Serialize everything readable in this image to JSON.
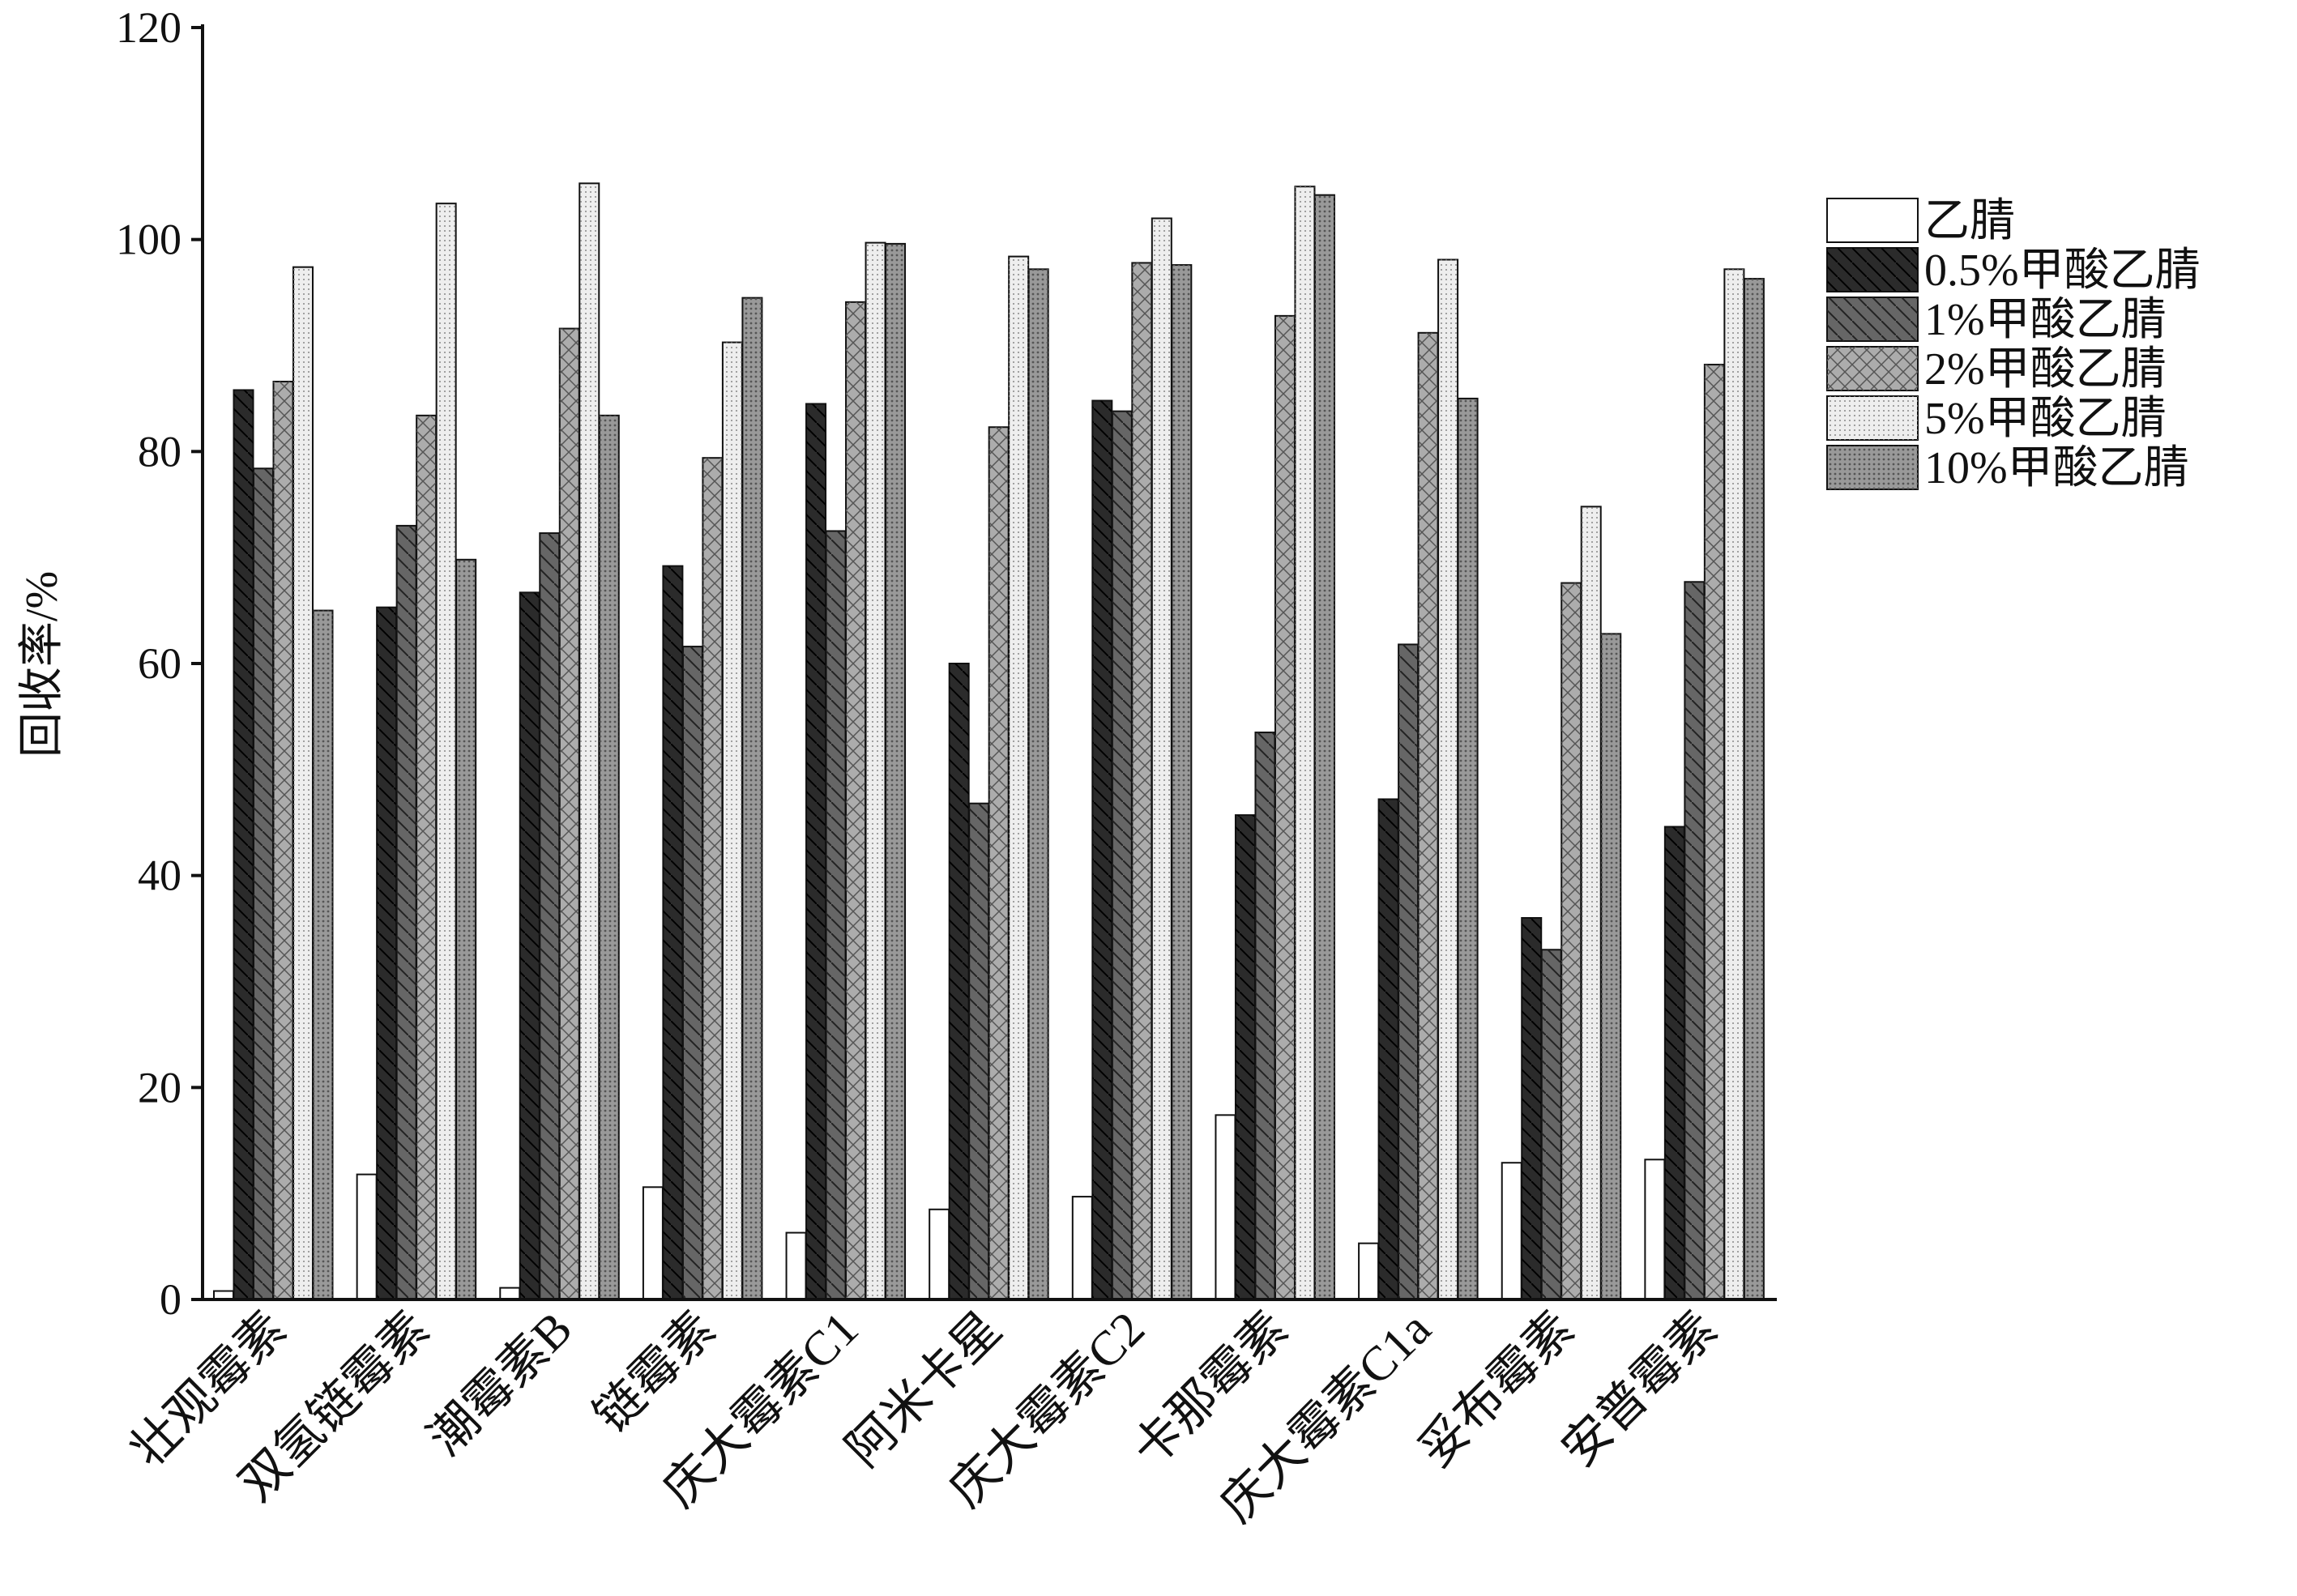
{
  "chart_data": {
    "type": "bar",
    "y_label": "回收率/%",
    "categories": [
      "壮观霉素",
      "双氢链霉素",
      "潮霉素B",
      "链霉素",
      "庆大霉素C1",
      "阿米卡星",
      "庆大霉素C2",
      "卡那霉素",
      "庆大霉素C1a",
      "妥布霉素",
      "安普霉素"
    ],
    "series": [
      {
        "name": "乙腈",
        "color": "#ffffff",
        "values": [
          0.8,
          11.8,
          1.1,
          10.6,
          6.3,
          8.5,
          9.7,
          17.4,
          5.3,
          12.9,
          13.2
        ]
      },
      {
        "name": "0.5%甲酸乙腈",
        "color": "#2b2b2b",
        "values": [
          85.8,
          65.3,
          66.7,
          69.2,
          84.5,
          60.0,
          84.8,
          45.7,
          47.2,
          36.0,
          44.6
        ]
      },
      {
        "name": "1%甲酸乙腈",
        "color": "#666666",
        "values": [
          78.4,
          73.0,
          72.3,
          61.6,
          72.5,
          46.8,
          83.8,
          53.5,
          61.8,
          33.0,
          67.7
        ]
      },
      {
        "name": "2%甲酸乙腈",
        "color": "#acacac",
        "values": [
          86.6,
          83.4,
          91.6,
          79.4,
          94.1,
          82.3,
          97.8,
          92.8,
          91.2,
          67.6,
          88.2
        ]
      },
      {
        "name": "5%甲酸乙腈",
        "color": "#eeeeee",
        "values": [
          97.4,
          103.4,
          105.3,
          90.3,
          99.7,
          98.4,
          102.0,
          105.0,
          98.1,
          74.8,
          97.2
        ]
      },
      {
        "name": "10%甲酸乙腈",
        "color": "#999999",
        "values": [
          65.0,
          69.8,
          83.4,
          94.5,
          99.6,
          97.2,
          97.6,
          104.2,
          85.0,
          62.8,
          96.3
        ]
      }
    ],
    "ylim": [
      0,
      120
    ],
    "yticks": [
      0,
      20,
      40,
      60,
      80,
      100,
      120
    ],
    "grid": false,
    "legend": "right"
  }
}
